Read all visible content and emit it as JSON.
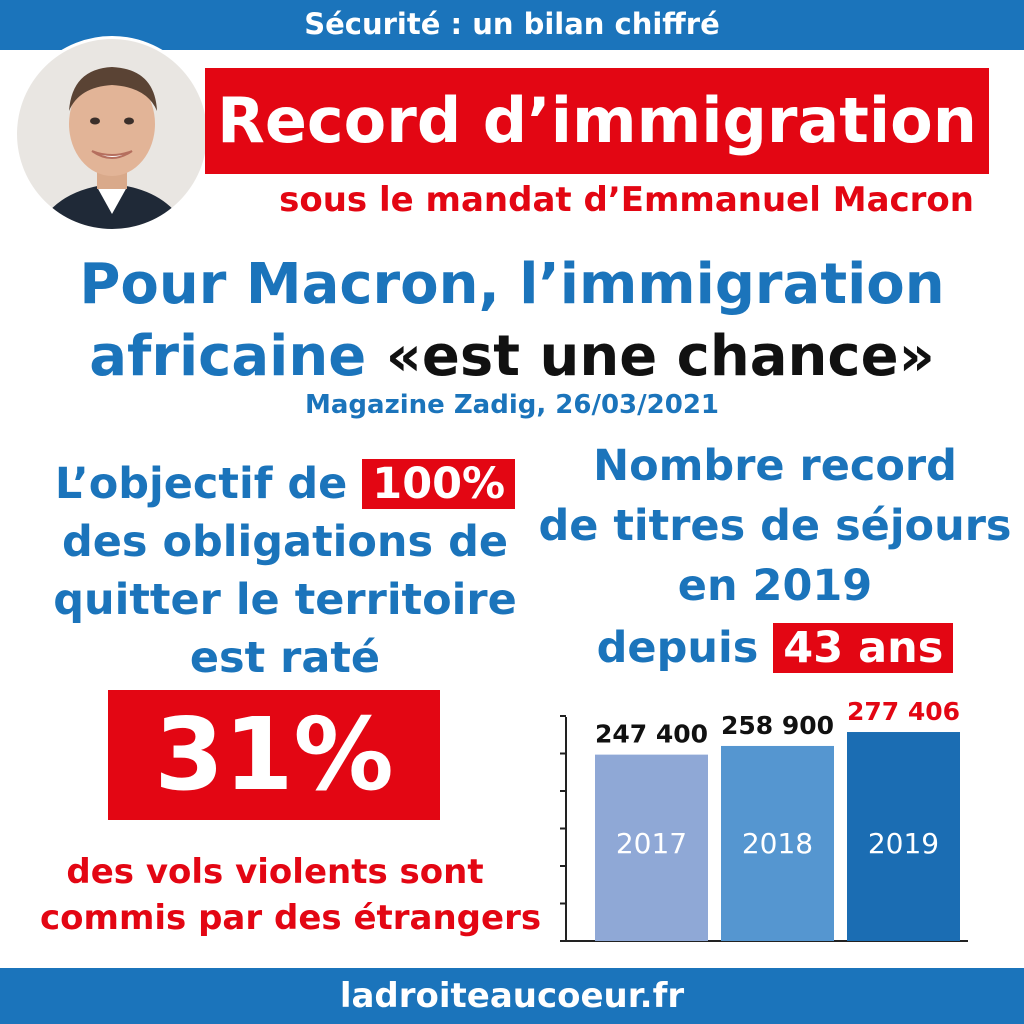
{
  "header": {
    "title": "Sécurité : un bilan chiffré"
  },
  "headline": "Record d’immigration",
  "subheadline": "sous le mandat d’Emmanuel Macron",
  "quote": {
    "line1": "Pour Macron, l’immigration",
    "line2_blue": "africaine ",
    "line2_black": "«est une chance»",
    "source": "Magazine Zadig, 26/03/2021"
  },
  "left_panel": {
    "line1_text": "L’objectif de ",
    "line1_highlight": "100%",
    "line2": "des obligations de",
    "line3": "quitter le territoire",
    "line4": "est raté",
    "big_stat": "31%",
    "caption1": "des vols violents sont",
    "caption2": "commis par des étrangers"
  },
  "right_panel": {
    "line1": "Nombre record",
    "line2": "de titres de séjours",
    "line3": "en 2019",
    "line4_text": "depuis ",
    "line4_highlight": "43 ans"
  },
  "footer": {
    "url": "ladroiteaucoeur.fr"
  },
  "colors": {
    "blue": "#1b74bb",
    "red": "#e30613",
    "bar_2017": "#8fa8d6",
    "bar_2018": "#5596d0",
    "bar_2019": "#1b6db3"
  },
  "chart_data": {
    "type": "bar",
    "categories": [
      "2017",
      "2018",
      "2019"
    ],
    "values": [
      247400,
      258900,
      277406
    ],
    "data_labels": [
      "247 400",
      "258 900",
      "277 406"
    ],
    "ylim": [
      0,
      300000
    ],
    "grid": false
  }
}
